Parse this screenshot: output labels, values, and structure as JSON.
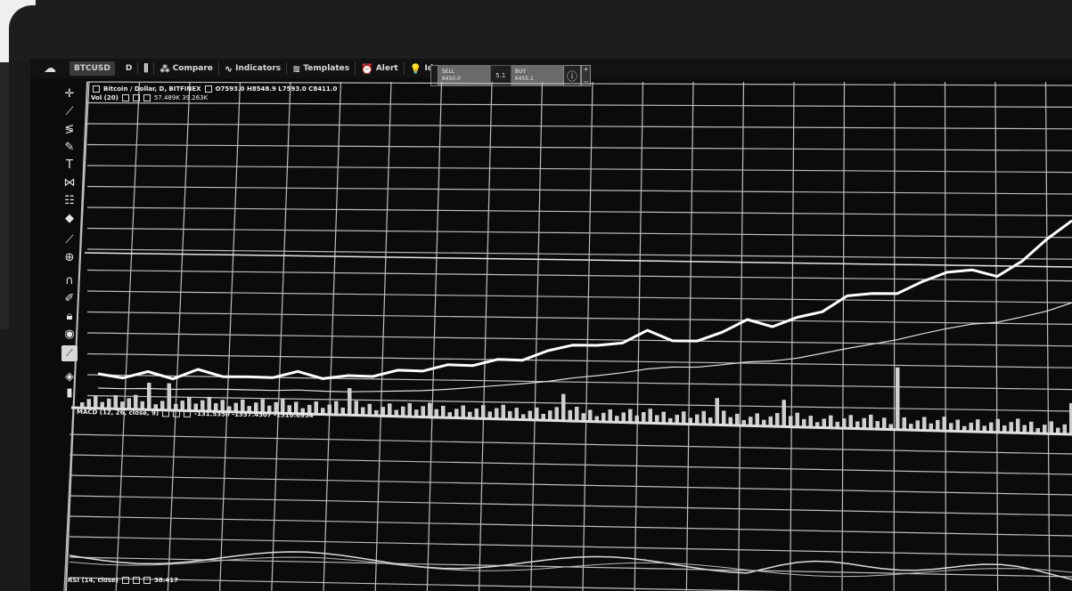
{
  "toolbar": {
    "symbol": "BTCUSD",
    "interval": "D",
    "compare": "Compare",
    "indicators": "Indicators",
    "templates": "Templates",
    "alert": "Alert",
    "ideas": "Ideas"
  },
  "trade": {
    "sell_label": "SELL",
    "sell_price": "6450.0",
    "spread": "5.1",
    "buy_label": "BUY",
    "buy_price": "6455.1"
  },
  "legend_main": {
    "title": "Bitcoin / Dollar, D, BITFINEX",
    "ohlc": "O7593.0 H8548.9 L7593.0 C8411.0",
    "vol_label": "Vol (20)",
    "vol_values": "57.489K  39.263K"
  },
  "legend_osc": {
    "label": "MACD (12, 26, close, 9)",
    "values": "-131.5350  -1357.4307  -1310.6954"
  },
  "legend_bottom": {
    "label": "RSI (14, close)",
    "value": "38.417"
  },
  "icons": {
    "cloud": "cloud-icon",
    "crosshair": "crosshair-icon",
    "trendline": "trend-line-icon",
    "fib": "fibonacci-icon",
    "brush": "brush-icon",
    "text": "text-icon",
    "pattern": "pattern-icon",
    "measure": "ruler-icon",
    "zoom": "zoom-icon",
    "magnet": "magnet-icon",
    "lock": "lock-icon",
    "eye": "eye-icon",
    "trash": "trash-icon"
  },
  "chart_data": {
    "type": "line",
    "series": [
      {
        "values": [
          5,
          5,
          6,
          5,
          7,
          6,
          5,
          6,
          7,
          6,
          6,
          7,
          8,
          9,
          10,
          11,
          12,
          13,
          15,
          18,
          17,
          19,
          22,
          20,
          19,
          23,
          26,
          25,
          27,
          30,
          34,
          36,
          35,
          40,
          42,
          44,
          41,
          47,
          53,
          60
        ]
      }
    ],
    "grid": true
  },
  "colors": {
    "background": "#0b0b0b",
    "grid": "#bdbdbd",
    "line": "#ffffff",
    "toolbar": "#121212"
  }
}
